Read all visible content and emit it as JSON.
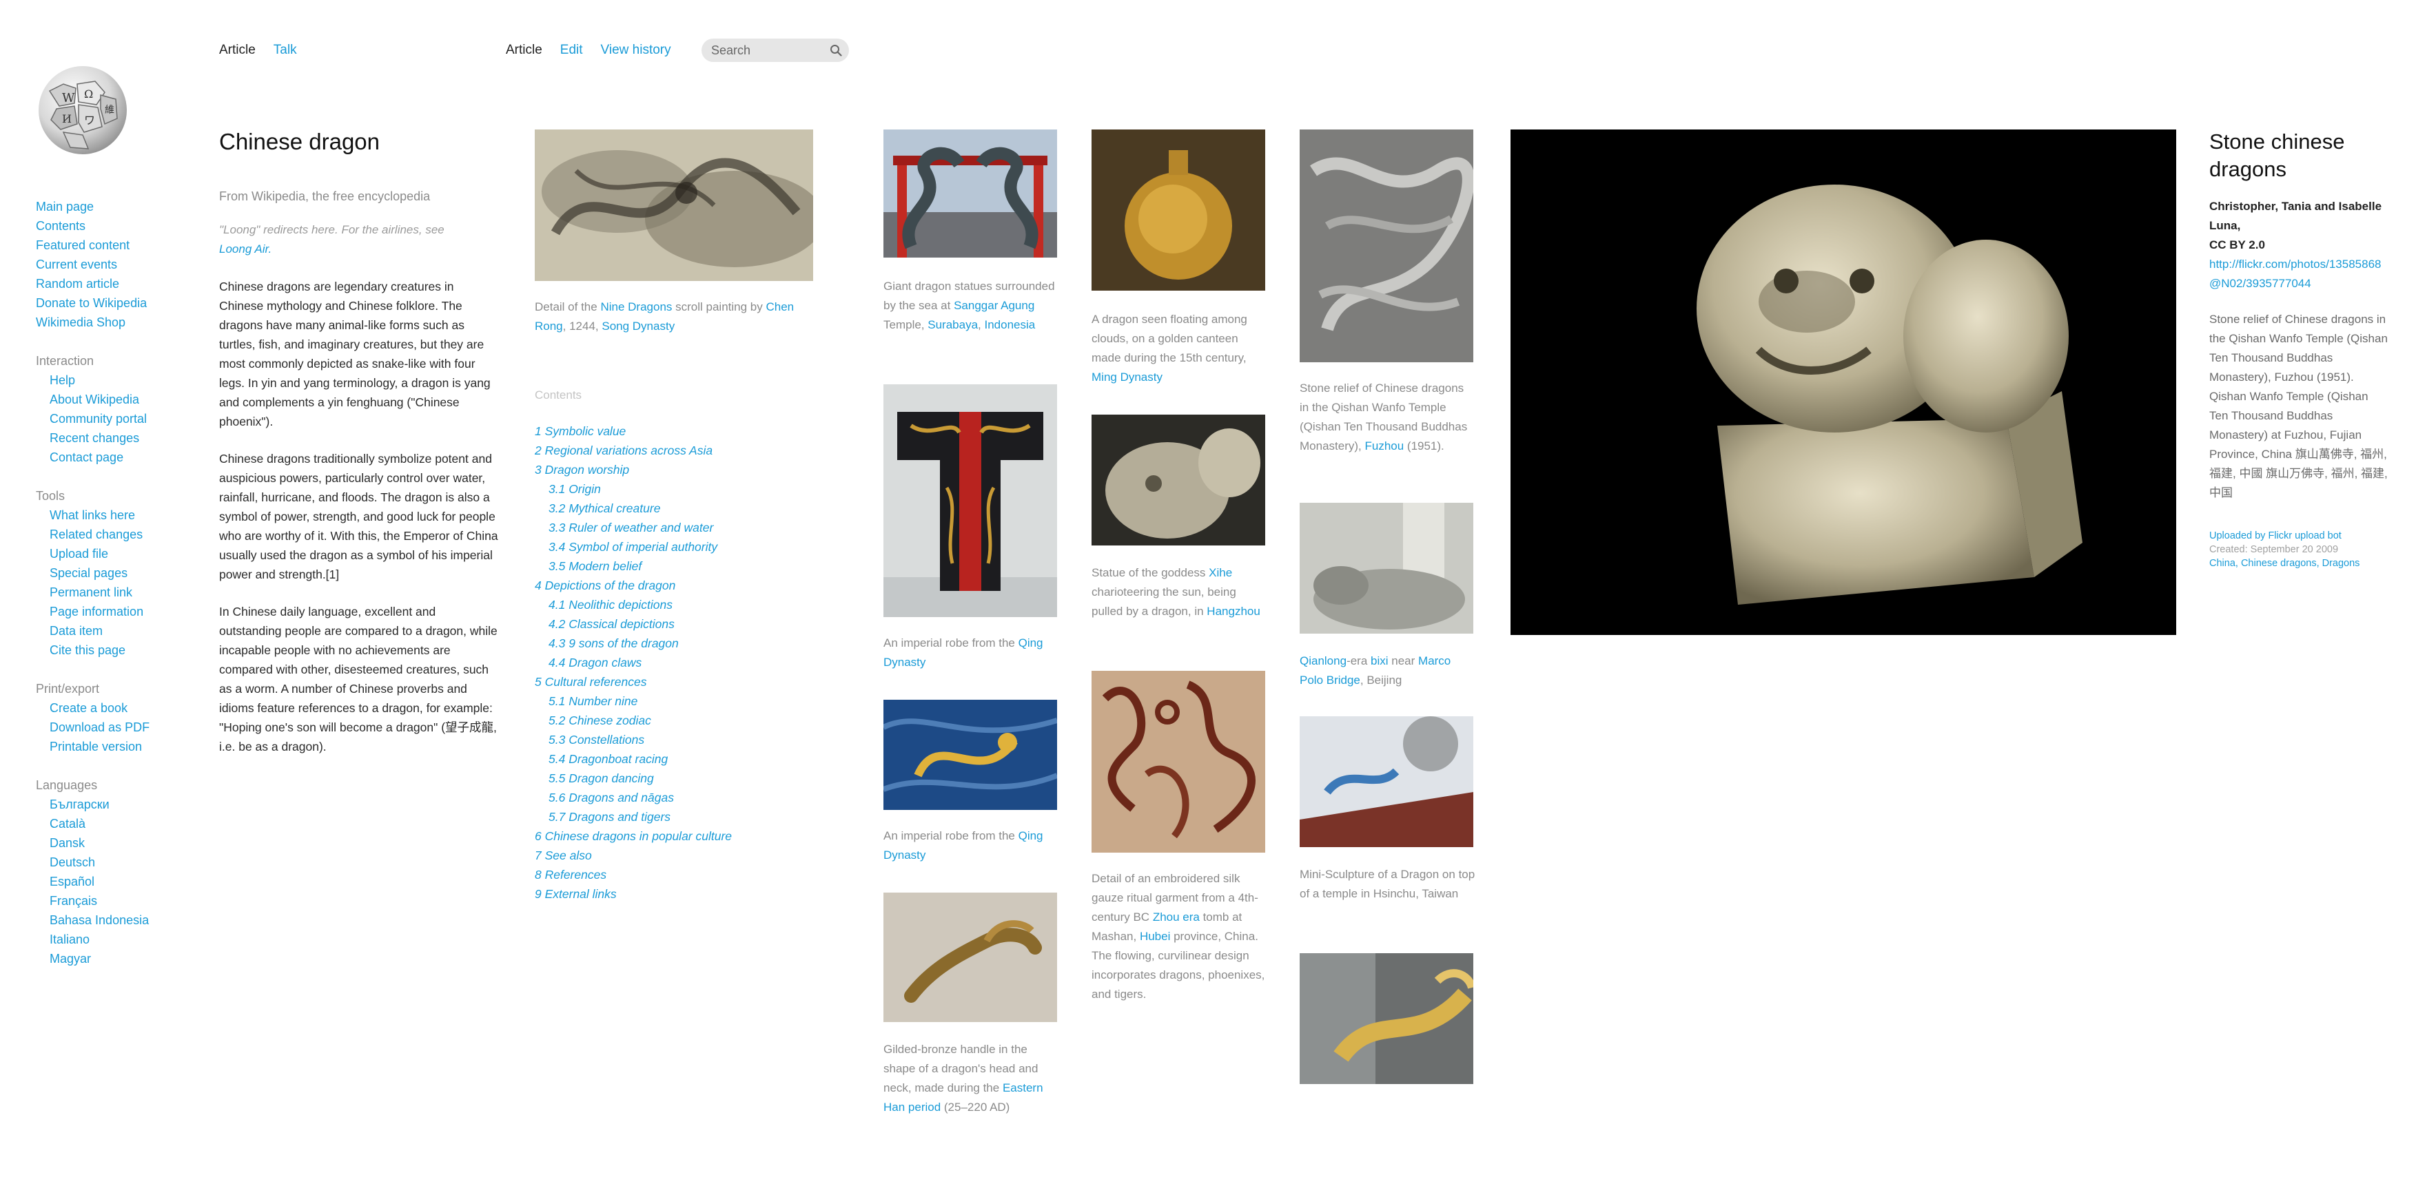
{
  "topbar": {
    "tabs_left": [
      "Article",
      "Talk"
    ],
    "tabs_right": [
      "Article",
      "Edit",
      "View history"
    ],
    "search_placeholder": "Search"
  },
  "sidebar": {
    "nav": [
      "Main page",
      "Contents",
      "Featured content",
      "Current events",
      "Random article",
      "Donate to Wikipedia",
      "Wikimedia Shop"
    ],
    "interaction": {
      "title": "Interaction",
      "items": [
        "Help",
        "About Wikipedia",
        "Community portal",
        "Recent changes",
        "Contact page"
      ]
    },
    "tools": {
      "title": "Tools",
      "items": [
        "What links here",
        "Related changes",
        "Upload file",
        "Special pages",
        "Permanent link",
        "Page information",
        "Data item",
        "Cite this page"
      ]
    },
    "print": {
      "title": "Print/export",
      "items": [
        "Create a book",
        "Download as PDF",
        "Printable version"
      ]
    },
    "languages": {
      "title": "Languages",
      "items": [
        "Български",
        "Català",
        "Dansk",
        "Deutsch",
        "Español",
        "Français",
        "Bahasa Indonesia",
        "Italiano",
        "Magyar"
      ]
    }
  },
  "article": {
    "title": "Chinese dragon",
    "from": "From Wikipedia, the free encyclopedia",
    "hatnote": "\"Loong\" redirects here. For the airlines, see",
    "hatnote_link": "Loong Air.",
    "paragraphs": [
      "Chinese dragons are legendary creatures in Chinese mythology and Chinese folklore. The dragons have many animal-like forms such as turtles, fish, and imaginary creatures, but they are most commonly depicted as snake-like with four legs. In yin and yang terminology, a dragon is yang and complements a yin fenghuang (\"Chinese phoenix\").",
      "Chinese dragons traditionally symbolize potent and auspicious powers, particularly control over water, rainfall, hurricane, and floods. The dragon is also a symbol of power, strength, and good luck for people who are worthy of it. With this, the Emperor of China usually used the dragon as a symbol of his imperial power and strength.[1]",
      "In Chinese daily language, excellent and outstanding people are compared to a dragon, while incapable people with no achievements are compared with other, disesteemed creatures, such as a worm. A number of Chinese proverbs and idioms feature references to a dragon, for example: \"Hoping one's son will become a dragon\" (望子成龍, i.e. be as a dragon)."
    ]
  },
  "painting": {
    "cap_a": "Detail of the ",
    "cap_l1": "Nine Dragons",
    "cap_b": " scroll painting by ",
    "cap_l2": "Chen Rong",
    "cap_c": ", 1244, ",
    "cap_l3": "Song Dynasty"
  },
  "toc": {
    "title": "Contents",
    "items": [
      {
        "text": "1 Symbolic value",
        "sub": false
      },
      {
        "text": "2 Regional variations across Asia",
        "sub": false
      },
      {
        "text": "3 Dragon worship",
        "sub": false
      },
      {
        "text": "3.1 Origin",
        "sub": true
      },
      {
        "text": "3.2 Mythical creature",
        "sub": true
      },
      {
        "text": "3.3 Ruler of weather and water",
        "sub": true
      },
      {
        "text": "3.4 Symbol of imperial authority",
        "sub": true
      },
      {
        "text": "3.5 Modern belief",
        "sub": true
      },
      {
        "text": "4 Depictions of the dragon",
        "sub": false
      },
      {
        "text": "4.1 Neolithic depictions",
        "sub": true
      },
      {
        "text": "4.2 Classical depictions",
        "sub": true
      },
      {
        "text": "4.3 9 sons of the dragon",
        "sub": true
      },
      {
        "text": "4.4 Dragon claws",
        "sub": true
      },
      {
        "text": "5 Cultural references",
        "sub": false
      },
      {
        "text": "5.1 Number nine",
        "sub": true
      },
      {
        "text": "5.2 Chinese zodiac",
        "sub": true
      },
      {
        "text": "5.3 Constellations",
        "sub": true
      },
      {
        "text": "5.4 Dragonboat racing",
        "sub": true
      },
      {
        "text": "5.5 Dragon dancing",
        "sub": true
      },
      {
        "text": "5.6 Dragons and nāgas",
        "sub": true
      },
      {
        "text": "5.7 Dragons and tigers",
        "sub": true
      },
      {
        "text": "6 Chinese dragons in popular culture",
        "sub": false
      },
      {
        "text": "7 See also",
        "sub": false
      },
      {
        "text": "8 References",
        "sub": false
      },
      {
        "text": "9 External links",
        "sub": false
      }
    ]
  },
  "gallery": {
    "col1": {
      "c1a": "Giant dragon statues surrounded by the sea at ",
      "c1l1": "Sanggar Agung",
      "c1b": " Temple, ",
      "c1l2": "Surabaya",
      "c1c": ", ",
      "c1l3": "Indonesia",
      "c2a": "An imperial robe from the ",
      "c2l1": "Qing Dynasty",
      "c3a": "An imperial robe from the ",
      "c3l1": "Qing Dynasty",
      "c4a": "Gilded-bronze handle in the shape of a dragon's head and neck, made during the ",
      "c4l1": "Eastern Han period",
      "c4b": " (25–220 AD)"
    },
    "col2": {
      "c1a": "A dragon seen floating among clouds, on a golden canteen made during the 15th century, ",
      "c1l1": "Ming Dynasty",
      "c2a": "Statue of the goddess ",
      "c2l1": "Xihe",
      "c2b": " charioteering the sun, being pulled by a dragon, in ",
      "c2l2": "Hangzhou",
      "c3a": "Detail of an embroidered silk gauze ritual garment from a 4th-century BC ",
      "c3l1": "Zhou era",
      "c3b": " tomb at Mashan, ",
      "c3l2": "Hubei",
      "c3c": " province, China. The flowing, curvilinear design incorporates dragons, phoenixes, and tigers."
    },
    "col3": {
      "c1a": "Stone relief of Chinese dragons in the Qishan Wanfo Temple (Qishan Ten Thousand Buddhas Monastery), ",
      "c1l1": "Fuzhou",
      "c1b": " (1951).",
      "c2l1": "Qianlong",
      "c2a": "-era ",
      "c2l2": "bixi",
      "c2b": " near ",
      "c2l3": "Marco Polo Bridge",
      "c2c": ", Beijing",
      "c3a": "Mini-Sculpture of a Dragon on top of a temple in Hsinchu, Taiwan"
    }
  },
  "info": {
    "title": "Stone chinese dragons",
    "author": "Christopher, Tania and Isabelle Luna,",
    "license": "CC BY 2.0",
    "url": "http://flickr.com/photos/13585868@N02/3935777044",
    "desc1": "Stone relief of Chinese dragons in the Qishan Wanfo Temple (Qishan Ten Thousand Buddhas Monastery), Fuzhou (1951).",
    "desc2": "Qishan Wanfo Temple (Qishan Ten Thousand Buddhas Monastery) at Fuzhou, Fujian Province, China 旗山萬佛寺, 福州, 福建, 中國 旗山万佛寺, 福州, 福建, 中国",
    "uploaded": "Uploaded by Flickr upload bot",
    "created": "Created: September 20 2009",
    "categories": "China, Chinese dragons, Dragons"
  }
}
